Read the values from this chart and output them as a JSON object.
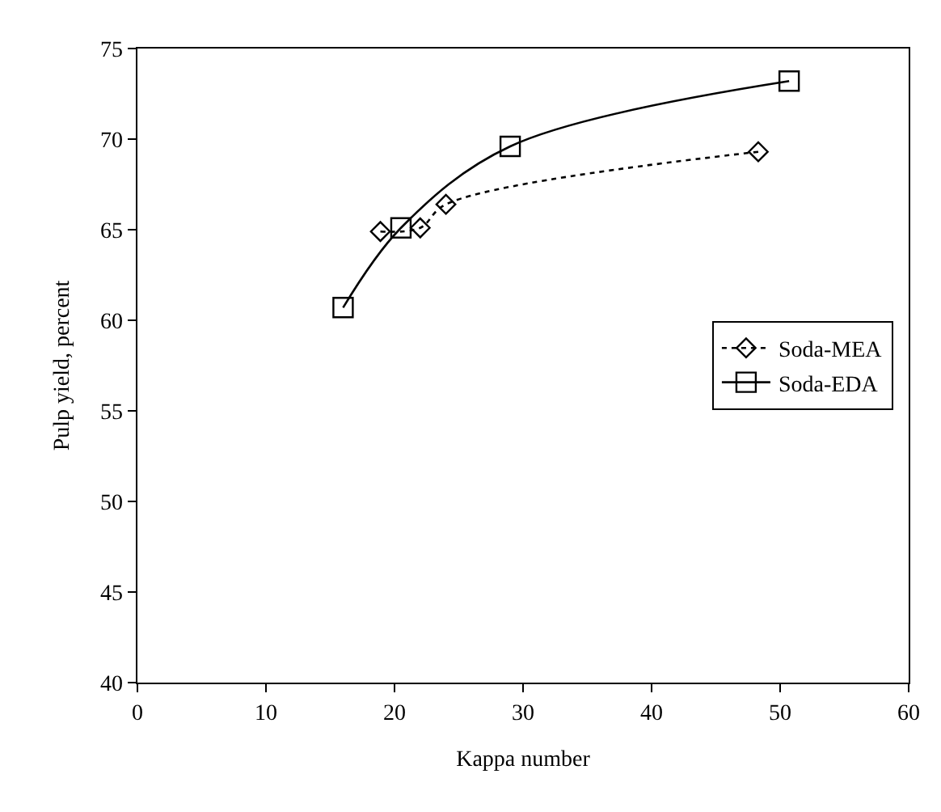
{
  "chart_data": {
    "type": "line",
    "xlabel": "Kappa number",
    "ylabel": "Pulp yield, percent",
    "xlim": [
      0,
      60
    ],
    "xticks": [
      0,
      10,
      20,
      30,
      40,
      50,
      60
    ],
    "ylim": [
      40,
      75
    ],
    "yticks": [
      40,
      45,
      50,
      55,
      60,
      65,
      70,
      75
    ],
    "legend": "right",
    "series": [
      {
        "name": "Soda-MEA",
        "color": "#000000",
        "marker": "diamond",
        "line_style": "dotted",
        "x": [
          18.9,
          22,
          24,
          48.3
        ],
        "values": [
          64.9,
          65.1,
          66.4,
          69.3
        ]
      },
      {
        "name": "Soda-EDA",
        "color": "#000000",
        "marker": "square",
        "line_style": "solid",
        "x": [
          16,
          20.5,
          29,
          50.7
        ],
        "values": [
          60.7,
          65.1,
          69.6,
          73.2
        ]
      }
    ]
  }
}
